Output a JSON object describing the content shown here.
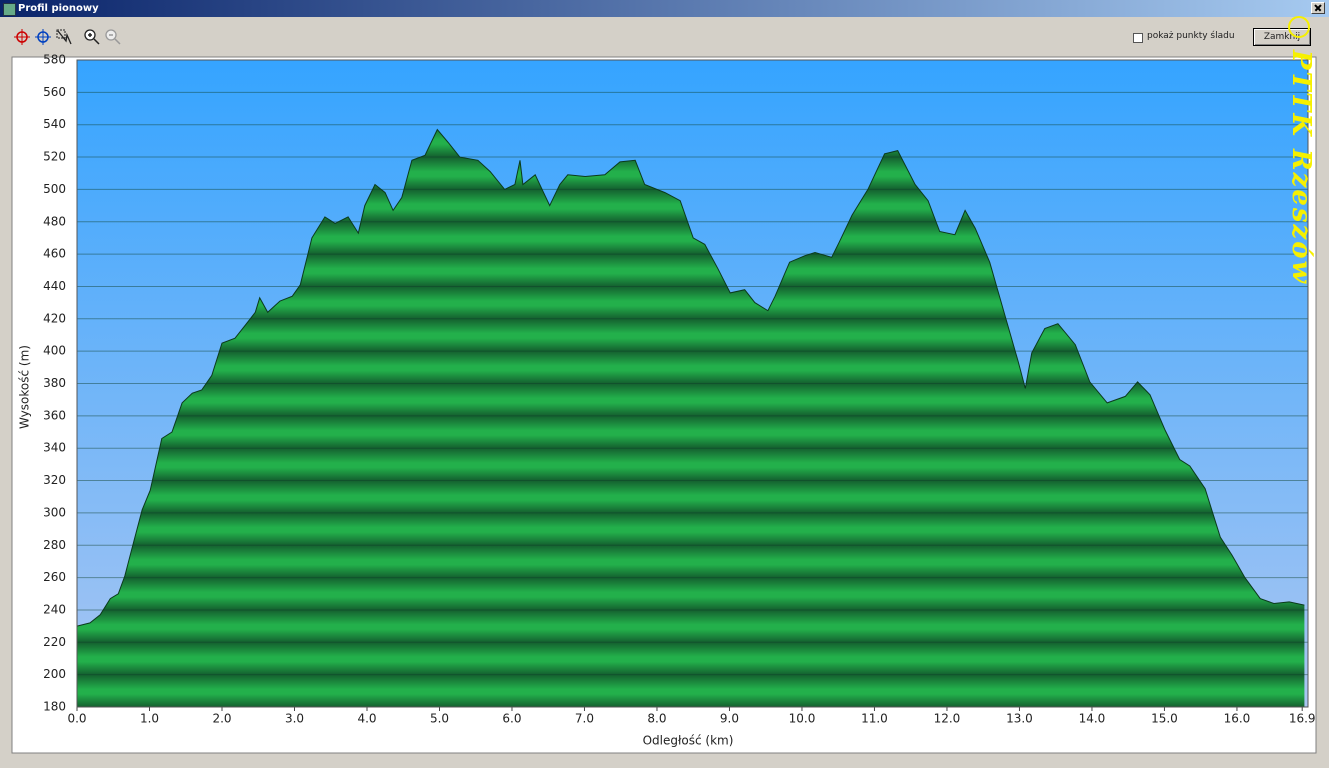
{
  "window": {
    "title": "Profil pionowy"
  },
  "toolbar": {
    "checkbox_label": "pokaż punkty śladu",
    "button": "Zamknij"
  },
  "watermark": "PTTK Rzeszów",
  "chart_data": {
    "type": "area",
    "xlabel": "Odległość   (km)",
    "ylabel": "Wysokość (m)",
    "xlim": [
      0,
      16.98
    ],
    "ylim": [
      180,
      580
    ],
    "xticks": [
      {
        "value": 0,
        "label": "0.0"
      },
      {
        "value": 1,
        "label": "1.0"
      },
      {
        "value": 2,
        "label": "2.0"
      },
      {
        "value": 3,
        "label": "3.0"
      },
      {
        "value": 4,
        "label": "4.0"
      },
      {
        "value": 5,
        "label": "5.0"
      },
      {
        "value": 6,
        "label": "6.0"
      },
      {
        "value": 7,
        "label": "7.0"
      },
      {
        "value": 8,
        "label": "8.0"
      },
      {
        "value": 9,
        "label": "9.0"
      },
      {
        "value": 10,
        "label": "10.0"
      },
      {
        "value": 11,
        "label": "11.0"
      },
      {
        "value": 12,
        "label": "12.0"
      },
      {
        "value": 13,
        "label": "13.0"
      },
      {
        "value": 14,
        "label": "14.0"
      },
      {
        "value": 15,
        "label": "15.0"
      },
      {
        "value": 16,
        "label": "16.0"
      },
      16.9
    ],
    "yticks": [
      180,
      200,
      220,
      240,
      260,
      280,
      300,
      320,
      340,
      360,
      380,
      400,
      420,
      440,
      460,
      480,
      500,
      520,
      540,
      560,
      580
    ],
    "grid": true,
    "color": "#1f9e45",
    "x": [
      0,
      0.18,
      0.32,
      0.46,
      0.57,
      0.66,
      0.77,
      0.9,
      1.01,
      1.17,
      1.31,
      1.45,
      1.59,
      1.72,
      1.86,
      2.0,
      2.18,
      2.32,
      2.46,
      2.52,
      2.63,
      2.8,
      2.97,
      3.08,
      3.24,
      3.42,
      3.56,
      3.74,
      3.88,
      3.97,
      4.11,
      4.25,
      4.36,
      4.48,
      4.62,
      4.8,
      4.97,
      5.12,
      5.28,
      5.53,
      5.7,
      5.9,
      6.04,
      6.11,
      6.15,
      6.32,
      6.52,
      6.66,
      6.77,
      7.01,
      7.28,
      7.49,
      7.7,
      7.83,
      8.11,
      8.32,
      8.5,
      8.66,
      8.84,
      9.01,
      9.21,
      9.35,
      9.53,
      9.63,
      9.83,
      10.04,
      10.18,
      10.41,
      10.52,
      10.69,
      10.91,
      11.14,
      11.32,
      11.56,
      11.74,
      11.9,
      12.11,
      12.25,
      12.39,
      12.59,
      12.8,
      12.98,
      13.08,
      13.17,
      13.35,
      13.53,
      13.77,
      13.97,
      14.21,
      14.46,
      14.63,
      14.8,
      15.01,
      15.21,
      15.35,
      15.56,
      15.77,
      15.93,
      16.11,
      16.32,
      16.51,
      16.72,
      16.93
    ],
    "values": [
      230,
      232,
      237,
      247,
      250,
      261,
      280,
      302,
      314,
      346,
      350,
      368,
      374,
      376,
      385,
      405,
      408,
      416,
      424,
      433,
      424,
      431,
      434,
      441,
      470,
      483,
      479,
      483,
      473,
      490,
      503,
      498,
      487,
      495,
      518,
      521,
      537,
      529,
      520,
      518,
      511,
      500,
      503,
      518,
      503,
      509,
      490,
      503,
      509,
      508,
      509,
      517,
      518,
      503,
      498,
      493,
      470,
      466,
      451,
      436,
      438,
      430,
      425,
      434,
      455,
      459,
      461,
      458,
      468,
      484,
      500,
      522,
      524,
      503,
      493,
      474,
      472,
      487,
      476,
      455,
      422,
      394,
      377,
      399,
      414,
      417,
      404,
      381,
      368,
      372,
      381,
      373,
      351,
      333,
      329,
      315,
      285,
      274,
      260,
      247,
      244,
      245,
      243
    ]
  }
}
